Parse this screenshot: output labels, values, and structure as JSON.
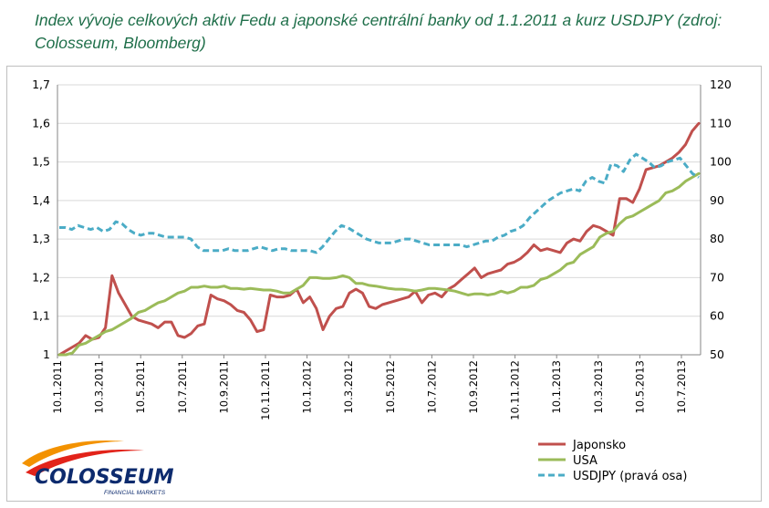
{
  "title": "Index vývoje celkových aktiv Fedu a japonské centrální banky od 1.1.2011 a kurz USDJPY (zdroj: Colosseum, Bloomberg)",
  "logo": {
    "name": "COLOSSEUM",
    "tagline": "FINANCIAL MARKETS",
    "colors": {
      "swoosh_orange": "#f39200",
      "swoosh_red": "#e2231a",
      "text": "#0d2b6e"
    }
  },
  "chart_data": {
    "type": "line",
    "title": "Index vývoje celkových aktiv Fedu a japonské centrální banky od 1.1.2011 a kurz USDJPY",
    "x_tick_labels": [
      "10.1.2011",
      "10.3.2011",
      "10.5.2011",
      "10.7.2011",
      "10.9.2011",
      "10.11.2011",
      "10.1.2012",
      "10.3.2012",
      "10.5.2012",
      "10.7.2012",
      "10.9.2012",
      "10.11.2012",
      "10.1.2013",
      "10.3.2013",
      "10.5.2013",
      "10.7.2013"
    ],
    "x_range": [
      "2011-01-10",
      "2013-08-26"
    ],
    "y_left": {
      "range": [
        1.0,
        1.7
      ],
      "ticks": [
        "1",
        "1,1",
        "1,2",
        "1,3",
        "1,4",
        "1,5",
        "1,6",
        "1,7"
      ]
    },
    "y_right": {
      "range": [
        50,
        120
      ],
      "ticks": [
        "50",
        "60",
        "70",
        "80",
        "90",
        "100",
        "110",
        "120"
      ]
    },
    "grid": "horizontal",
    "legend_position": "bottom-right",
    "series": [
      {
        "name": "Japonsko",
        "axis": "left",
        "color": "#c0504d",
        "style": "solid",
        "values": [
          1.0,
          1.01,
          1.02,
          1.03,
          1.05,
          1.04,
          1.045,
          1.07,
          1.205,
          1.16,
          1.13,
          1.1,
          1.09,
          1.085,
          1.08,
          1.07,
          1.085,
          1.085,
          1.05,
          1.045,
          1.055,
          1.075,
          1.08,
          1.155,
          1.145,
          1.14,
          1.13,
          1.115,
          1.11,
          1.09,
          1.06,
          1.065,
          1.155,
          1.15,
          1.15,
          1.155,
          1.17,
          1.135,
          1.15,
          1.12,
          1.065,
          1.1,
          1.12,
          1.125,
          1.16,
          1.17,
          1.16,
          1.125,
          1.12,
          1.13,
          1.135,
          1.14,
          1.145,
          1.15,
          1.165,
          1.135,
          1.155,
          1.16,
          1.15,
          1.17,
          1.18,
          1.195,
          1.21,
          1.225,
          1.2,
          1.21,
          1.215,
          1.22,
          1.235,
          1.24,
          1.25,
          1.265,
          1.285,
          1.27,
          1.275,
          1.27,
          1.265,
          1.29,
          1.3,
          1.295,
          1.32,
          1.335,
          1.33,
          1.32,
          1.31,
          1.405,
          1.405,
          1.395,
          1.43,
          1.48,
          1.485,
          1.49,
          1.5,
          1.51,
          1.525,
          1.545,
          1.58,
          1.6
        ]
      },
      {
        "name": "USA",
        "axis": "left",
        "color": "#9bbb59",
        "style": "solid",
        "values": [
          1.0,
          1.0,
          1.005,
          1.025,
          1.03,
          1.04,
          1.05,
          1.06,
          1.065,
          1.075,
          1.085,
          1.095,
          1.11,
          1.115,
          1.125,
          1.135,
          1.14,
          1.15,
          1.16,
          1.165,
          1.175,
          1.175,
          1.178,
          1.175,
          1.175,
          1.178,
          1.172,
          1.172,
          1.17,
          1.172,
          1.17,
          1.168,
          1.168,
          1.165,
          1.16,
          1.16,
          1.17,
          1.18,
          1.2,
          1.2,
          1.198,
          1.198,
          1.2,
          1.205,
          1.2,
          1.185,
          1.185,
          1.18,
          1.178,
          1.175,
          1.172,
          1.17,
          1.17,
          1.168,
          1.165,
          1.168,
          1.172,
          1.172,
          1.17,
          1.168,
          1.165,
          1.16,
          1.155,
          1.158,
          1.158,
          1.155,
          1.158,
          1.165,
          1.16,
          1.165,
          1.175,
          1.175,
          1.18,
          1.195,
          1.2,
          1.21,
          1.22,
          1.235,
          1.24,
          1.26,
          1.27,
          1.28,
          1.305,
          1.315,
          1.32,
          1.34,
          1.355,
          1.36,
          1.37,
          1.38,
          1.39,
          1.4,
          1.42,
          1.425,
          1.435,
          1.45,
          1.46,
          1.47
        ]
      },
      {
        "name": "USDJPY (pravá osa)",
        "axis": "right",
        "color": "#4bacc6",
        "style": "dashed",
        "values": [
          83,
          83,
          82.5,
          83.5,
          83,
          82.5,
          83,
          82,
          82.5,
          84.5,
          84,
          82.5,
          81.5,
          81,
          81.5,
          81.5,
          81,
          80.5,
          80.5,
          80.5,
          80.5,
          80,
          78,
          77,
          77,
          77,
          77,
          77.5,
          77,
          77,
          77,
          77.5,
          78,
          77.5,
          77,
          77.5,
          77.5,
          77,
          77,
          77,
          77,
          76.5,
          78,
          80,
          82,
          83.5,
          83,
          82,
          81,
          80,
          79.5,
          79,
          79,
          79,
          79.5,
          80,
          80,
          79.5,
          79,
          78.5,
          78.5,
          78.5,
          78.5,
          78.5,
          78.5,
          78,
          78.5,
          79,
          79.5,
          79.5,
          80.5,
          81,
          82,
          82.5,
          83.5,
          85.5,
          87,
          88.5,
          90,
          91,
          92,
          92.5,
          93,
          92.5,
          95,
          96,
          95,
          94.5,
          99.5,
          99,
          97.5,
          100.5,
          102,
          101,
          100,
          98.5,
          99,
          100,
          100.5,
          101,
          99,
          97,
          96
        ]
      }
    ]
  }
}
